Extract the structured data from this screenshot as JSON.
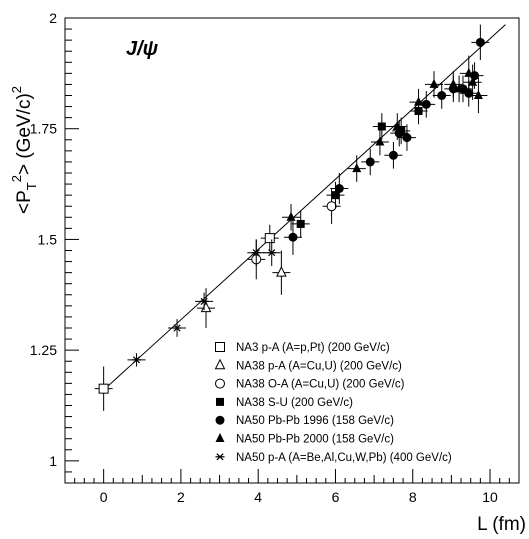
{
  "chart_data": {
    "type": "scatter",
    "title": "J/ψ",
    "xlabel": "L (fm)",
    "ylabel": "<P_T^2> (GeV/c)^2",
    "xlim": [
      -1,
      10.75
    ],
    "ylim": [
      0.95,
      2.0
    ],
    "x_ticks": [
      0,
      2,
      4,
      6,
      8,
      10
    ],
    "y_ticks": [
      1,
      1.25,
      1.5,
      1.75,
      2
    ],
    "y_tick_labels": [
      "1",
      "1.25",
      "1.5",
      "1.75",
      "2"
    ],
    "grid": false,
    "legend_position": "bottom-right",
    "fit_line": {
      "x": [
        0,
        10.4
      ],
      "y": [
        1.16,
        1.985
      ]
    },
    "series": [
      {
        "name": "NA3 p-A (A=p,Pt) (200 GeV/c)",
        "marker": "open-square",
        "points": [
          {
            "x": 0.0,
            "y": 1.163,
            "yerr": 0.05
          },
          {
            "x": 4.3,
            "y": 1.503,
            "yerr": 0.03
          }
        ]
      },
      {
        "name": "NA38 p-A (A=Cu,U) (200 GeV/c)",
        "marker": "open-triangle",
        "points": [
          {
            "x": 2.65,
            "y": 1.345,
            "yerr": 0.045
          },
          {
            "x": 4.6,
            "y": 1.425,
            "yerr": 0.05
          }
        ]
      },
      {
        "name": "NA38 O-A (A=Cu,U) (200 GeV/c)",
        "marker": "open-circle",
        "points": [
          {
            "x": 3.95,
            "y": 1.455,
            "yerr": 0.045
          },
          {
            "x": 5.9,
            "y": 1.575,
            "yerr": 0.04
          }
        ]
      },
      {
        "name": "NA38 S-U (200 GeV/c)",
        "marker": "filled-square",
        "points": [
          {
            "x": 5.1,
            "y": 1.535,
            "yerr": 0.03
          },
          {
            "x": 6.0,
            "y": 1.6,
            "yerr": 0.03
          },
          {
            "x": 7.2,
            "y": 1.755,
            "yerr": 0.03
          },
          {
            "x": 7.7,
            "y": 1.745,
            "yerr": 0.03
          },
          {
            "x": 8.15,
            "y": 1.79,
            "yerr": 0.03
          }
        ]
      },
      {
        "name": "NA50 Pb-Pb 1996 (158 GeV/c)",
        "marker": "filled-circle",
        "points": [
          {
            "x": 4.9,
            "y": 1.505,
            "yerr": 0.04
          },
          {
            "x": 6.1,
            "y": 1.615,
            "yerr": 0.035
          },
          {
            "x": 6.9,
            "y": 1.675,
            "yerr": 0.03
          },
          {
            "x": 7.5,
            "y": 1.69,
            "yerr": 0.03
          },
          {
            "x": 7.65,
            "y": 1.74,
            "yerr": 0.03
          },
          {
            "x": 7.85,
            "y": 1.73,
            "yerr": 0.03
          },
          {
            "x": 8.35,
            "y": 1.805,
            "yerr": 0.03
          },
          {
            "x": 8.75,
            "y": 1.825,
            "yerr": 0.03
          },
          {
            "x": 9.05,
            "y": 1.84,
            "yerr": 0.03
          },
          {
            "x": 9.3,
            "y": 1.84,
            "yerr": 0.03
          },
          {
            "x": 9.6,
            "y": 1.87,
            "yerr": 0.03
          },
          {
            "x": 9.75,
            "y": 1.945,
            "yerr": 0.04
          },
          {
            "x": 9.45,
            "y": 1.83,
            "yerr": 0.03
          }
        ]
      },
      {
        "name": "NA50 Pb-Pb 2000 (158 GeV/c)",
        "marker": "filled-triangle",
        "points": [
          {
            "x": 4.85,
            "y": 1.55,
            "yerr": 0.03
          },
          {
            "x": 6.55,
            "y": 1.66,
            "yerr": 0.03
          },
          {
            "x": 7.15,
            "y": 1.72,
            "yerr": 0.03
          },
          {
            "x": 7.6,
            "y": 1.755,
            "yerr": 0.03
          },
          {
            "x": 8.15,
            "y": 1.81,
            "yerr": 0.03
          },
          {
            "x": 8.55,
            "y": 1.85,
            "yerr": 0.03
          },
          {
            "x": 9.05,
            "y": 1.85,
            "yerr": 0.03
          },
          {
            "x": 9.2,
            "y": 1.84,
            "yerr": 0.03
          },
          {
            "x": 9.45,
            "y": 1.875,
            "yerr": 0.04
          },
          {
            "x": 9.55,
            "y": 1.855,
            "yerr": 0.04
          },
          {
            "x": 9.7,
            "y": 1.825,
            "yerr": 0.04
          }
        ]
      },
      {
        "name": "NA50  p-A (A=Be,Al,Cu,W,Pb) (400 GeV/c)",
        "marker": "asterisk",
        "points": [
          {
            "x": 0.85,
            "y": 1.228,
            "yerr": 0.015
          },
          {
            "x": 1.9,
            "y": 1.3,
            "yerr": 0.02
          },
          {
            "x": 2.6,
            "y": 1.36,
            "yerr": 0.02
          },
          {
            "x": 3.95,
            "y": 1.47,
            "yerr": 0.03
          },
          {
            "x": 4.35,
            "y": 1.47,
            "yerr": 0.03
          }
        ]
      }
    ]
  }
}
